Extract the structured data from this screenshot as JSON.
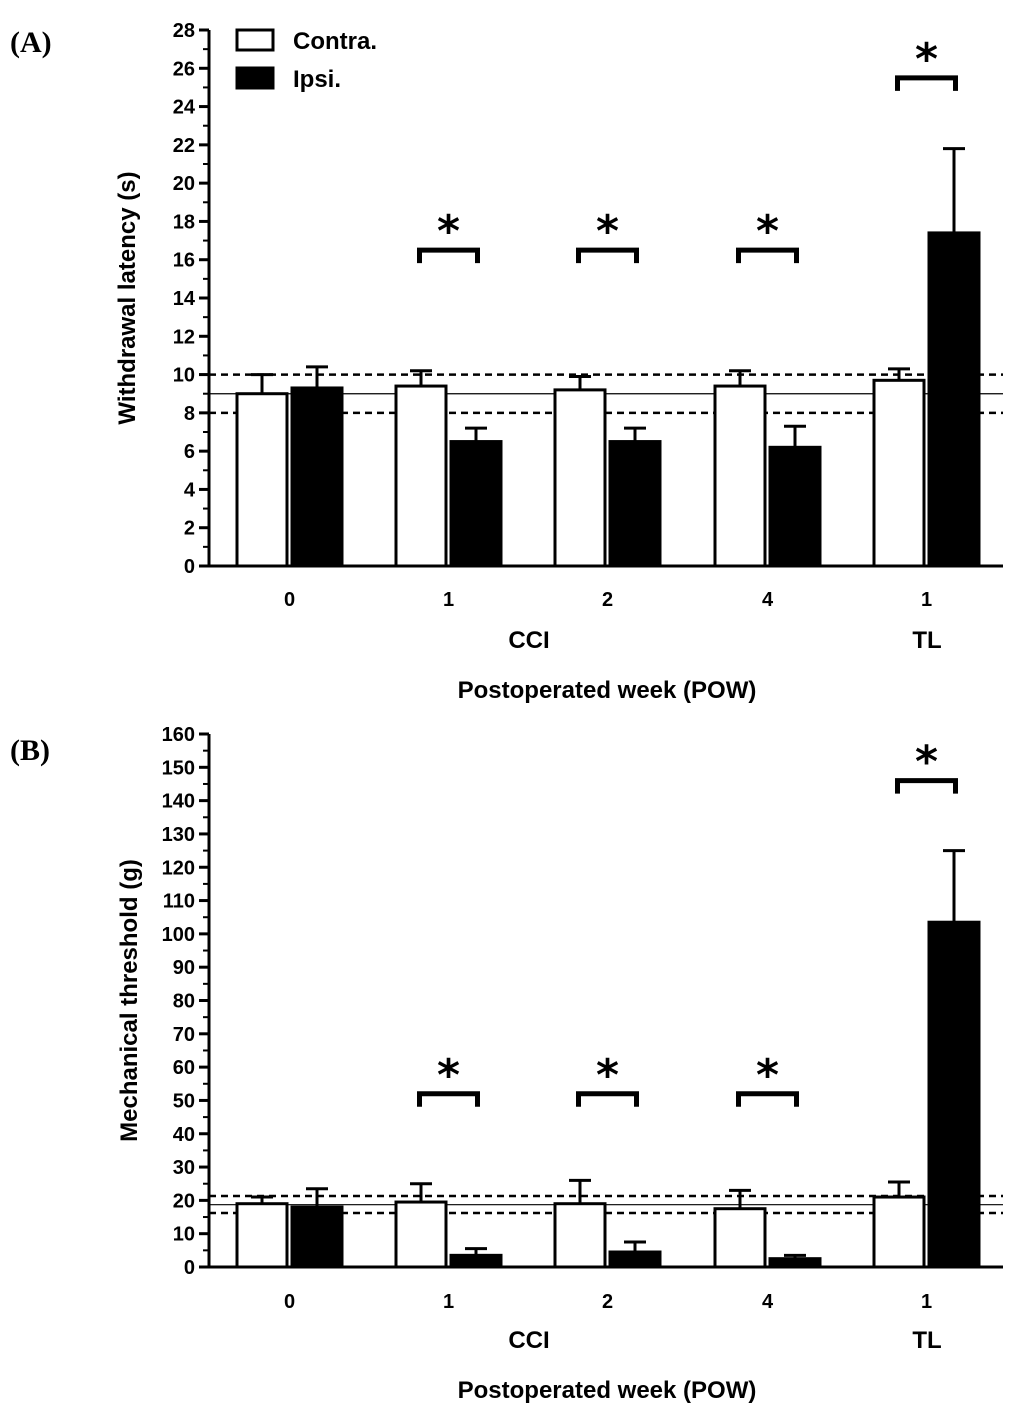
{
  "chart_data": [
    {
      "type": "bar",
      "panel_label": "(A)",
      "ylabel": "Withdrawal latency (s)",
      "xlabel": "Postoperated week (POW)",
      "ylim": [
        0,
        28
      ],
      "yticks": [
        0,
        2,
        4,
        6,
        8,
        10,
        12,
        14,
        16,
        18,
        20,
        22,
        24,
        26,
        28
      ],
      "categories": [
        "0",
        "1",
        "2",
        "4",
        "1"
      ],
      "groups": [
        "CCI",
        "TL"
      ],
      "series": [
        {
          "name": "Contra.",
          "fill": "#ffffff",
          "values": [
            9.0,
            9.4,
            9.2,
            9.4,
            9.7
          ],
          "errors": [
            1.0,
            0.8,
            0.7,
            0.8,
            0.6
          ]
        },
        {
          "name": "Ipsi.",
          "fill": "#000000",
          "values": [
            9.3,
            6.5,
            6.5,
            6.2,
            17.4
          ],
          "errors": [
            1.1,
            0.7,
            0.7,
            1.1,
            4.4
          ]
        }
      ],
      "significance": [
        {
          "category_index": 1,
          "label": "*",
          "level": 16.5
        },
        {
          "category_index": 2,
          "label": "*",
          "level": 16.5
        },
        {
          "category_index": 3,
          "label": "*",
          "level": 16.5
        },
        {
          "category_index": 4,
          "label": "*",
          "level": 25.5
        }
      ],
      "reference_lines": [
        {
          "value": 10.0,
          "style": "dashed"
        },
        {
          "value": 9.0,
          "style": "thin"
        },
        {
          "value": 8.0,
          "style": "dashed"
        }
      ]
    },
    {
      "type": "bar",
      "panel_label": "(B)",
      "ylabel": "Mechanical threshold (g)",
      "xlabel": "Postoperated week (POW)",
      "ylim": [
        0,
        160
      ],
      "yticks": [
        0,
        10,
        20,
        30,
        40,
        50,
        60,
        70,
        80,
        90,
        100,
        110,
        120,
        130,
        140,
        150,
        160
      ],
      "categories": [
        "0",
        "1",
        "2",
        "4",
        "1"
      ],
      "groups": [
        "CCI",
        "TL"
      ],
      "series": [
        {
          "name": "Contra.",
          "fill": "#ffffff",
          "values": [
            19,
            19.5,
            19,
            17.5,
            21
          ],
          "errors": [
            2,
            5.5,
            7,
            5.5,
            4.5
          ]
        },
        {
          "name": "Ipsi.",
          "fill": "#000000",
          "values": [
            18,
            3.5,
            4.5,
            2.5,
            103.5
          ],
          "errors": [
            5.5,
            2,
            3,
            1,
            21.5
          ]
        }
      ],
      "significance": [
        {
          "category_index": 1,
          "label": "*",
          "level": 52
        },
        {
          "category_index": 2,
          "label": "*",
          "level": 52
        },
        {
          "category_index": 3,
          "label": "*",
          "level": 52
        },
        {
          "category_index": 4,
          "label": "*",
          "level": 146
        }
      ],
      "reference_lines": [
        {
          "value": 21.3,
          "style": "dashed"
        },
        {
          "value": 18.7,
          "style": "thin"
        },
        {
          "value": 16.2,
          "style": "dashed"
        }
      ]
    }
  ]
}
